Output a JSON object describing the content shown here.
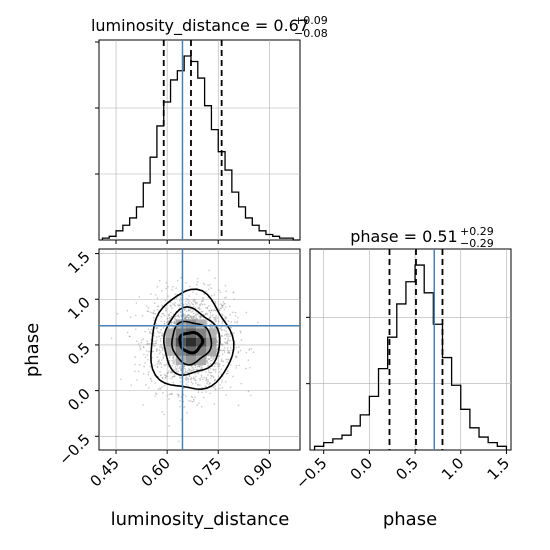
{
  "chart_data": [
    {
      "type": "histogram",
      "panel": "luminosity_distance-1d",
      "title": {
        "text": "luminosity_distance = 0.67",
        "sup": "+0.09",
        "sub": "−0.08"
      },
      "xlim": [
        0.4,
        0.99
      ],
      "quantiles": [
        0.59,
        0.67,
        0.76
      ],
      "truth": 0.645,
      "bins": [
        0.41,
        0.43,
        0.45,
        0.47,
        0.49,
        0.51,
        0.53,
        0.55,
        0.57,
        0.59,
        0.61,
        0.63,
        0.65,
        0.67,
        0.69,
        0.71,
        0.73,
        0.75,
        0.77,
        0.79,
        0.81,
        0.83,
        0.85,
        0.87,
        0.89,
        0.91,
        0.93,
        0.95,
        0.97,
        0.99
      ],
      "counts": [
        0.01,
        0.02,
        0.05,
        0.08,
        0.12,
        0.18,
        0.31,
        0.45,
        0.62,
        0.75,
        0.87,
        0.92,
        1.0,
        0.97,
        0.88,
        0.73,
        0.6,
        0.48,
        0.38,
        0.26,
        0.18,
        0.12,
        0.08,
        0.05,
        0.03,
        0.02,
        0.01,
        0.01,
        0.0
      ]
    },
    {
      "type": "histogram",
      "panel": "phase-1d",
      "title": {
        "text": "phase = 0.51",
        "sup": "+0.29",
        "sub": "−0.29"
      },
      "xlim": [
        -0.65,
        1.55
      ],
      "quantiles": [
        0.22,
        0.51,
        0.8
      ],
      "truth": 0.71,
      "xticks": [
        -0.5,
        0.0,
        0.5,
        1.0,
        1.5
      ],
      "xtick_labels": [
        "−0.5",
        "0.0",
        "0.5",
        "1.0",
        "1.5"
      ],
      "xlabel": "phase",
      "bins": [
        -0.6,
        -0.5,
        -0.4,
        -0.3,
        -0.2,
        -0.1,
        0.0,
        0.1,
        0.2,
        0.3,
        0.4,
        0.5,
        0.6,
        0.7,
        0.8,
        0.9,
        1.0,
        1.1,
        1.2,
        1.3,
        1.4,
        1.5
      ],
      "counts": [
        0.02,
        0.04,
        0.06,
        0.08,
        0.13,
        0.19,
        0.29,
        0.44,
        0.61,
        0.79,
        0.91,
        1.0,
        0.85,
        0.68,
        0.5,
        0.35,
        0.22,
        0.12,
        0.07,
        0.04,
        0.02
      ]
    },
    {
      "type": "scatter",
      "panel": "2d-posterior",
      "xlim": [
        0.4,
        0.99
      ],
      "ylim": [
        -0.65,
        1.55
      ],
      "xticks": [
        0.45,
        0.6,
        0.75,
        0.9
      ],
      "xtick_labels": [
        "0.45",
        "0.60",
        "0.75",
        "0.90"
      ],
      "yticks": [
        -0.5,
        0.0,
        0.5,
        1.0,
        1.5
      ],
      "ytick_labels": [
        "−0.5",
        "0.0",
        "0.5",
        "1.0",
        "1.5"
      ],
      "xlabel": "luminosity_distance",
      "ylabel": "phase",
      "truth": {
        "x": 0.645,
        "y": 0.71
      },
      "center": {
        "x": 0.67,
        "y": 0.53
      },
      "contours": [
        {
          "rx": 0.033,
          "ry": 0.11,
          "level": 1
        },
        {
          "rx": 0.058,
          "ry": 0.23,
          "level": 2
        },
        {
          "rx": 0.082,
          "ry": 0.36,
          "level": 3
        },
        {
          "rx": 0.12,
          "ry": 0.54,
          "level": 4
        }
      ],
      "density_cells": [
        {
          "x": 0.67,
          "y": 0.53,
          "z": 1.0
        },
        {
          "x": 0.64,
          "y": 0.53,
          "z": 0.8
        },
        {
          "x": 0.7,
          "y": 0.53,
          "z": 0.8
        },
        {
          "x": 0.67,
          "y": 0.63,
          "z": 0.7
        },
        {
          "x": 0.67,
          "y": 0.43,
          "z": 0.7
        },
        {
          "x": 0.64,
          "y": 0.63,
          "z": 0.6
        },
        {
          "x": 0.7,
          "y": 0.63,
          "z": 0.55
        },
        {
          "x": 0.64,
          "y": 0.43,
          "z": 0.55
        },
        {
          "x": 0.7,
          "y": 0.43,
          "z": 0.55
        },
        {
          "x": 0.61,
          "y": 0.53,
          "z": 0.45
        },
        {
          "x": 0.73,
          "y": 0.53,
          "z": 0.45
        },
        {
          "x": 0.67,
          "y": 0.73,
          "z": 0.45
        },
        {
          "x": 0.67,
          "y": 0.33,
          "z": 0.45
        },
        {
          "x": 0.61,
          "y": 0.63,
          "z": 0.35
        },
        {
          "x": 0.73,
          "y": 0.43,
          "z": 0.35
        },
        {
          "x": 0.64,
          "y": 0.73,
          "z": 0.35
        },
        {
          "x": 0.7,
          "y": 0.33,
          "z": 0.35
        },
        {
          "x": 0.61,
          "y": 0.43,
          "z": 0.3
        },
        {
          "x": 0.73,
          "y": 0.63,
          "z": 0.3
        },
        {
          "x": 0.7,
          "y": 0.73,
          "z": 0.3
        },
        {
          "x": 0.64,
          "y": 0.33,
          "z": 0.3
        }
      ]
    }
  ],
  "colors": {
    "truth": "#4682b4",
    "hist": "#000000",
    "grid": "#b0b0b0",
    "points": "#9a9a9a"
  }
}
